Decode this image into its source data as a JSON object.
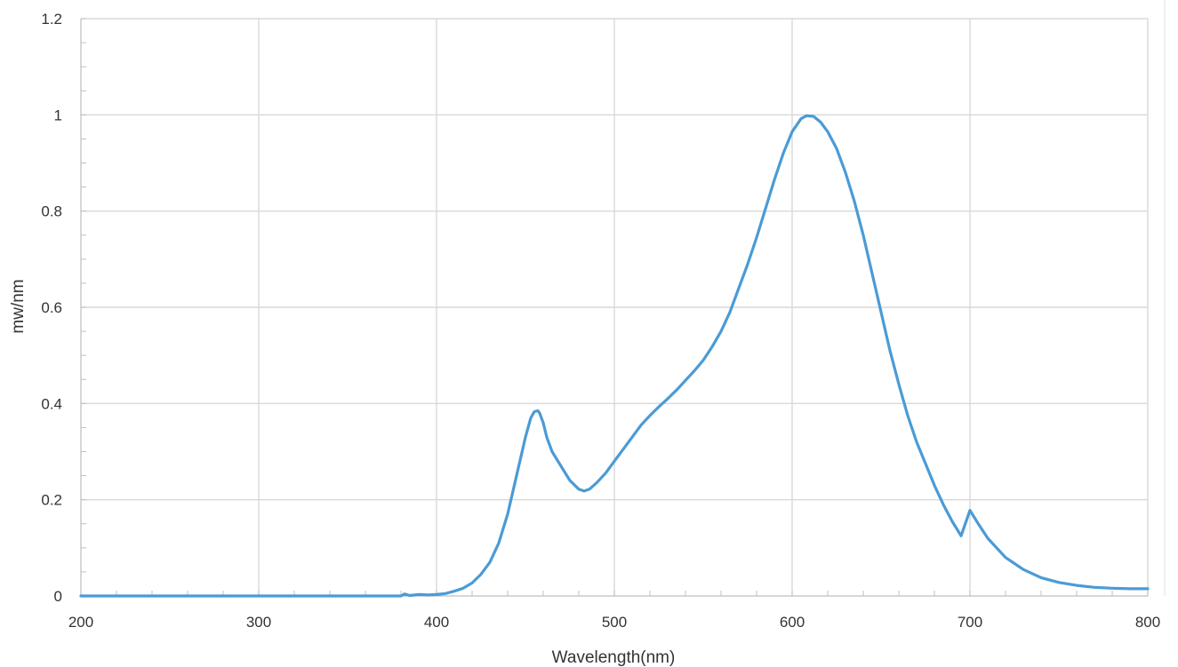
{
  "chart_data": {
    "type": "line",
    "title": "",
    "xlabel": "Wavelength(nm)",
    "ylabel": "mw/nm",
    "xlim": [
      200,
      800
    ],
    "ylim": [
      0,
      1.2
    ],
    "x_ticks": [
      "200",
      "300",
      "400",
      "500",
      "600",
      "700",
      "800"
    ],
    "y_ticks": [
      "0",
      "0.2",
      "0.4",
      "0.6",
      "0.8",
      "1",
      "1.2"
    ],
    "grid": true,
    "legend": "none",
    "line_color": "#4a9bd6",
    "series": [
      {
        "x": [
          200,
          250,
          300,
          350,
          380,
          382,
          385,
          390,
          395,
          400,
          405,
          410,
          415,
          420,
          425,
          430,
          435,
          440,
          445,
          450,
          453,
          455,
          457,
          458,
          460,
          462,
          465,
          470,
          475,
          480,
          483,
          486,
          490,
          495,
          500,
          505,
          510,
          515,
          520,
          525,
          530,
          535,
          540,
          545,
          550,
          555,
          560,
          565,
          570,
          575,
          580,
          585,
          590,
          595,
          600,
          605,
          608,
          612,
          616,
          620,
          625,
          630,
          635,
          640,
          645,
          650,
          655,
          660,
          665,
          670,
          675,
          680,
          685,
          690,
          695,
          700,
          705,
          710,
          720,
          730,
          740,
          750,
          760,
          770,
          780,
          790,
          800
        ],
        "y": [
          0,
          0,
          0,
          0,
          0,
          0.004,
          0.001,
          0.003,
          0.002,
          0.003,
          0.005,
          0.01,
          0.016,
          0.027,
          0.045,
          0.07,
          0.11,
          0.17,
          0.25,
          0.33,
          0.37,
          0.383,
          0.385,
          0.38,
          0.36,
          0.33,
          0.3,
          0.27,
          0.24,
          0.222,
          0.218,
          0.222,
          0.235,
          0.255,
          0.28,
          0.305,
          0.33,
          0.355,
          0.375,
          0.393,
          0.41,
          0.428,
          0.448,
          0.468,
          0.49,
          0.518,
          0.55,
          0.59,
          0.64,
          0.69,
          0.745,
          0.805,
          0.865,
          0.92,
          0.965,
          0.992,
          0.998,
          0.997,
          0.985,
          0.965,
          0.93,
          0.88,
          0.82,
          0.75,
          0.67,
          0.59,
          0.51,
          0.44,
          0.375,
          0.32,
          0.275,
          0.23,
          0.19,
          0.155,
          0.125,
          0.178,
          0.148,
          0.12,
          0.08,
          0.055,
          0.038,
          0.028,
          0.022,
          0.018,
          0.016,
          0.015,
          0.015
        ]
      }
    ]
  }
}
